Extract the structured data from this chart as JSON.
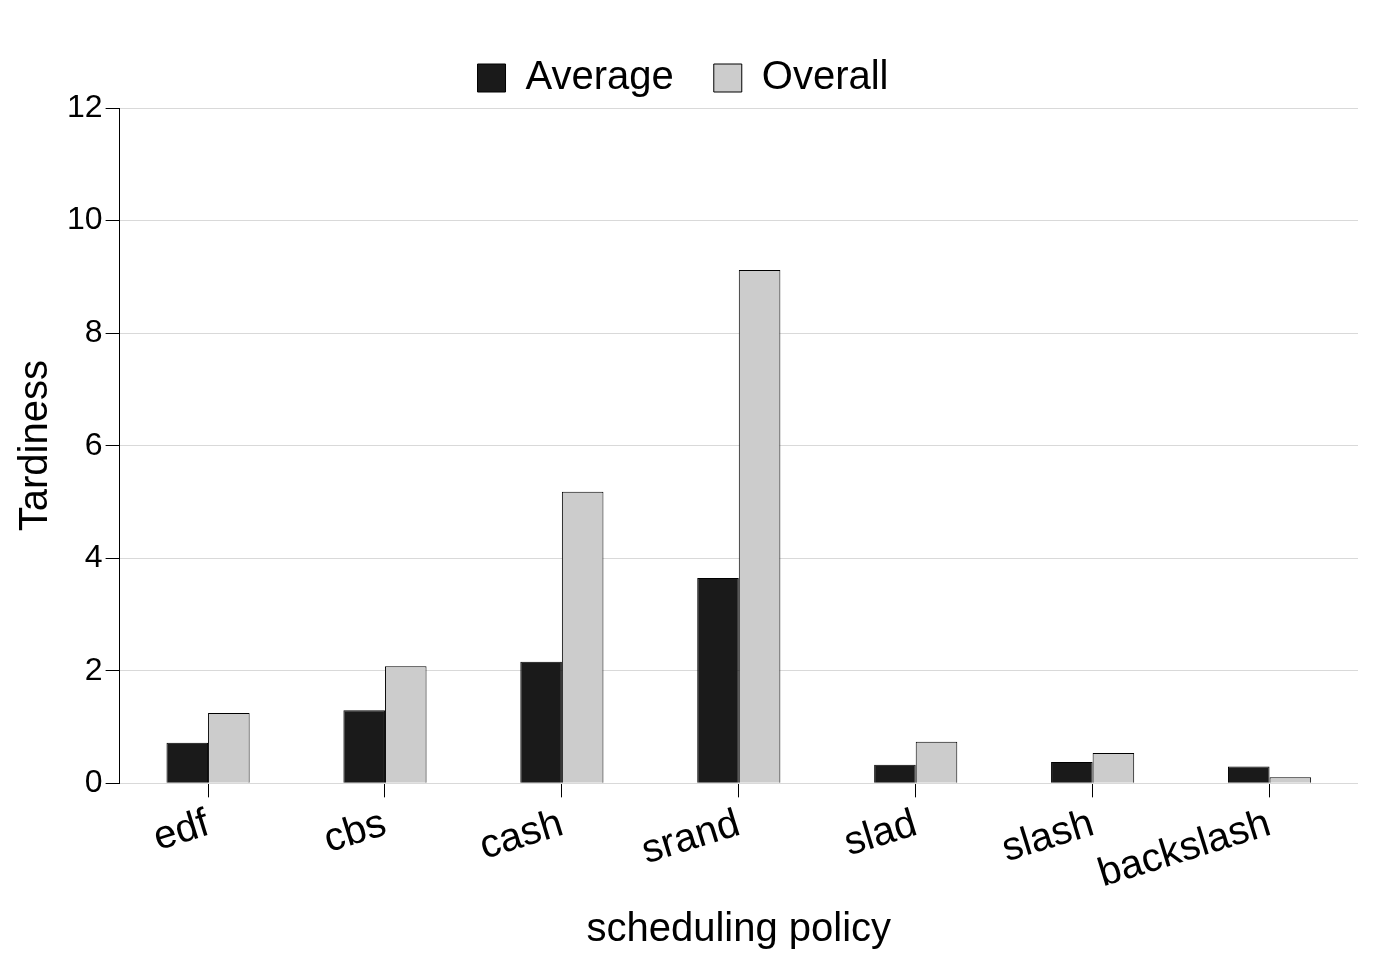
{
  "chart_data": {
    "type": "bar",
    "xlabel": "scheduling policy",
    "ylabel": "Tardiness",
    "categories": [
      "edf",
      "cbs",
      "cash",
      "srand",
      "slad",
      "slash",
      "backslash"
    ],
    "series": [
      {
        "name": "Average",
        "color": "#1a1a1a",
        "values": [
          0.72,
          1.3,
          2.16,
          3.65,
          0.33,
          0.38,
          0.3
        ]
      },
      {
        "name": "Overall",
        "color": "#cccccc",
        "values": [
          1.25,
          2.08,
          5.18,
          9.12,
          0.74,
          0.54,
          0.11
        ]
      }
    ],
    "ylim": [
      0,
      12
    ],
    "yticks": [
      0,
      2,
      4,
      6,
      8,
      10,
      12
    ],
    "grid": "y",
    "legend": "top"
  }
}
